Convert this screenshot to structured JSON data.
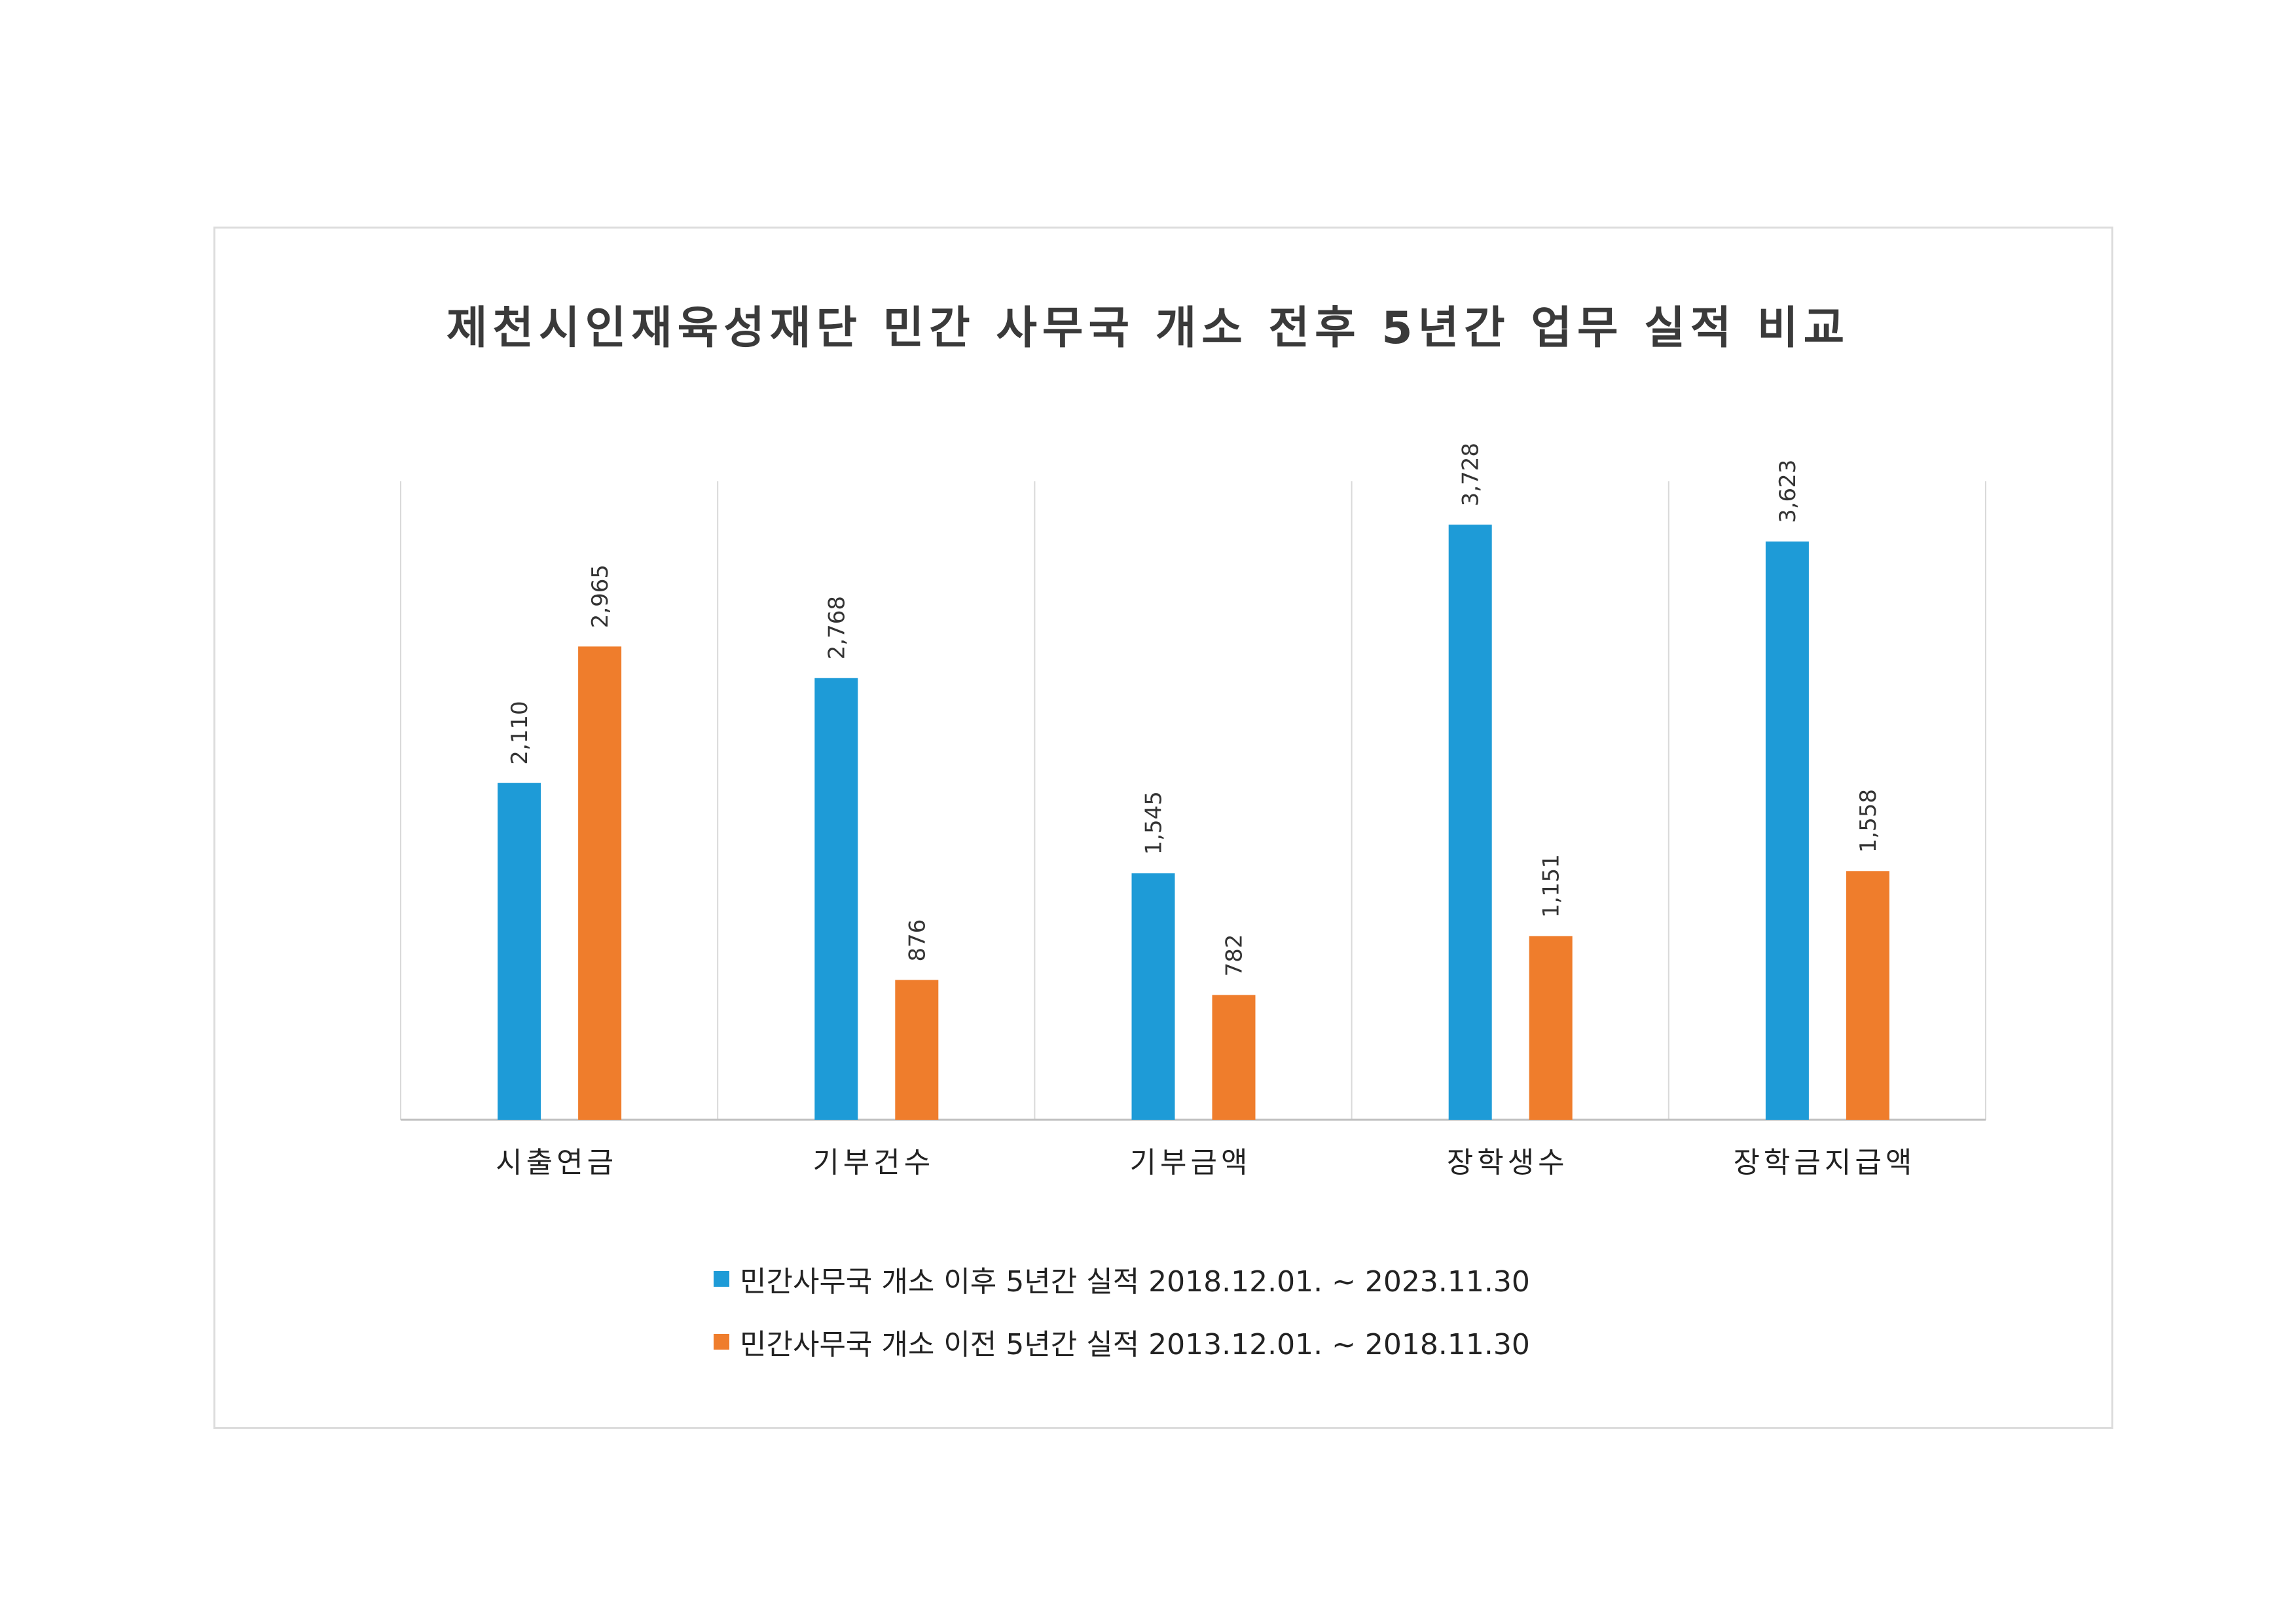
{
  "chart_data": {
    "type": "bar",
    "title": "제천시인재육성재단 민간 사무국 개소 전후 5년간 업무 실적 비교",
    "categories": [
      "시출연금",
      "기부건수",
      "기부금액",
      "장학생수",
      "장학금지급액"
    ],
    "series": [
      {
        "name": "민간사무국 개소 이후 5년간 실적 2018.12.01. ~ 2023.11.30",
        "values": [
          2110,
          2768,
          1545,
          3728,
          3623
        ],
        "labels": [
          "2,110",
          "2,768",
          "1,545",
          "3,728",
          "3,623"
        ],
        "color": "#1e9bd7"
      },
      {
        "name": "민간사무국 개소 이전 5년간 실적 2013.12.01. ~ 2018.11.30",
        "values": [
          2965,
          876,
          782,
          1151,
          1558
        ],
        "labels": [
          "2,965",
          "876",
          "782",
          "1,151",
          "1,558"
        ],
        "color": "#ef7d2c"
      }
    ],
    "ylim": [
      0,
      4000
    ],
    "grid": "vertical separators",
    "legend": "bottom"
  }
}
